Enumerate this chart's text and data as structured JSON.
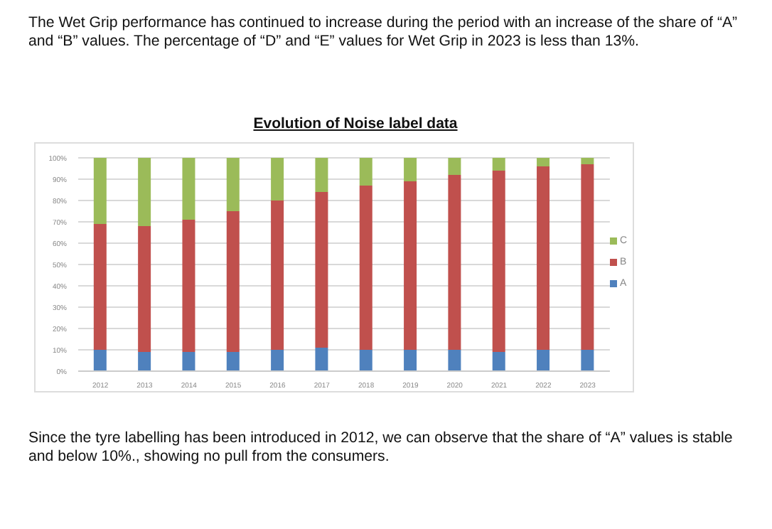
{
  "chart_data": {
    "type": "bar",
    "title": "Evolution of Noise label data",
    "annotations": [
      "The Wet Grip performance has continued to increase during the period with an increase of the share of “A” and “B” values. The percentage of “D” and “E” values for Wet Grip in 2023 is less than 13%.",
      "Since the tyre labelling has been introduced in 2012, we can observe that the share of “A” values is stable and below 10%., showing no pull from the consumers."
    ],
    "categories": [
      "2012",
      "2013",
      "2014",
      "2015",
      "2016",
      "2017",
      "2018",
      "2019",
      "2020",
      "2021",
      "2022",
      "2023"
    ],
    "stacked": true,
    "series": [
      {
        "name": "A",
        "color": "#4f81bd",
        "values": [
          10,
          9,
          9,
          9,
          10,
          11,
          10,
          10,
          10,
          9,
          10,
          10
        ]
      },
      {
        "name": "B",
        "color": "#c0504d",
        "values": [
          59,
          59,
          62,
          66,
          70,
          73,
          77,
          79,
          82,
          85,
          86,
          87
        ]
      },
      {
        "name": "C",
        "color": "#9bbb59",
        "values": [
          31,
          32,
          29,
          25,
          20,
          16,
          13,
          11,
          8,
          6,
          4,
          3
        ]
      }
    ],
    "ylim": [
      0,
      100
    ],
    "yticks": [
      {
        "value": 0,
        "label": "0%"
      },
      {
        "value": 10,
        "label": "10%"
      },
      {
        "value": 20,
        "label": "20%"
      },
      {
        "value": 30,
        "label": "30%"
      },
      {
        "value": 40,
        "label": "40%"
      },
      {
        "value": 50,
        "label": "50%"
      },
      {
        "value": 60,
        "label": "60%"
      },
      {
        "value": 70,
        "label": "70%"
      },
      {
        "value": 80,
        "label": "80%"
      },
      {
        "value": 90,
        "label": "90%"
      },
      {
        "value": 100,
        "label": "100%"
      }
    ],
    "grid": "y",
    "legend": "right"
  }
}
